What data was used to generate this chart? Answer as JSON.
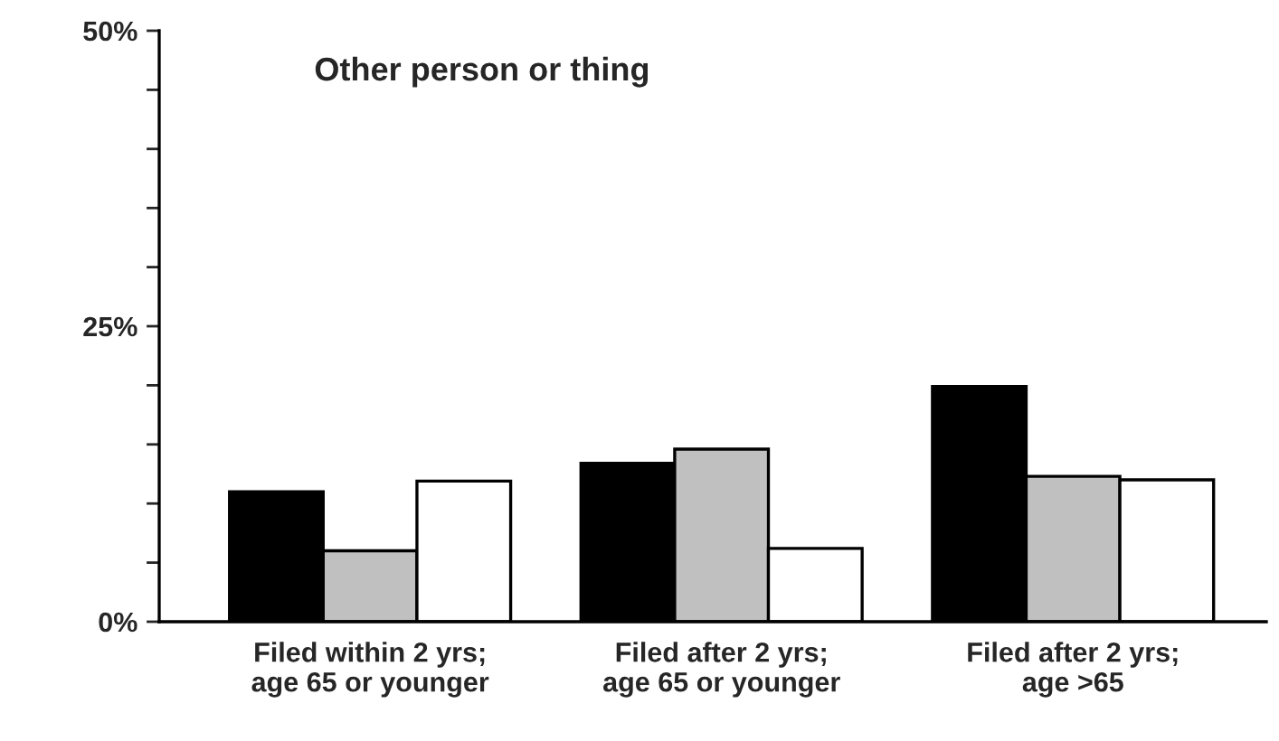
{
  "chart_data": {
    "type": "bar",
    "title": "Other person or thing",
    "categories": [
      "Filed within 2 yrs;\nage 65 or younger",
      "Filed after 2 yrs;\nage 65 or younger",
      "Filed after 2 yrs;\nage >65"
    ],
    "series": [
      {
        "color": "#000000",
        "values": [
          11.0,
          13.4,
          19.9
        ]
      },
      {
        "color": "#c0c0c0",
        "values": [
          6.0,
          14.6,
          12.3
        ]
      },
      {
        "color": "#ffffff",
        "values": [
          11.9,
          6.2,
          12.0
        ]
      }
    ],
    "ylim": [
      0,
      50
    ],
    "yticks": [
      {
        "value": 0,
        "label": "0%"
      },
      {
        "value": 5,
        "label": null
      },
      {
        "value": 10,
        "label": null
      },
      {
        "value": 15,
        "label": null
      },
      {
        "value": 20,
        "label": null
      },
      {
        "value": 25,
        "label": "25%"
      },
      {
        "value": 30,
        "label": null
      },
      {
        "value": 35,
        "label": null
      },
      {
        "value": 40,
        "label": null
      },
      {
        "value": 45,
        "label": null
      },
      {
        "value": 50,
        "label": "50%"
      }
    ],
    "grid": false,
    "legend": false
  }
}
